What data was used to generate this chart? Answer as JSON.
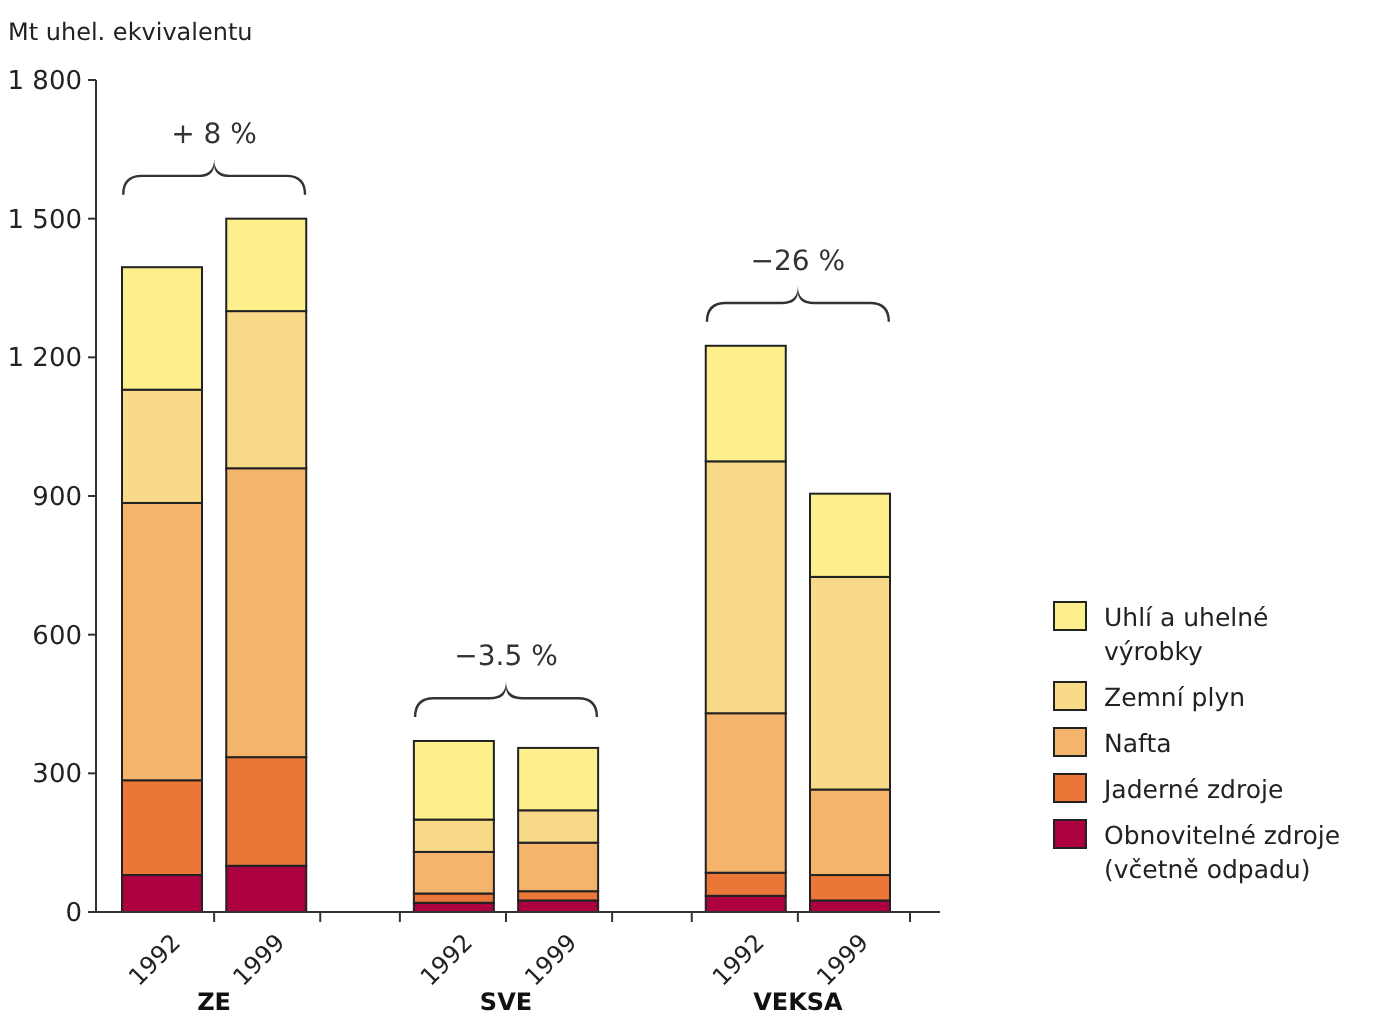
{
  "chart_data": {
    "type": "bar",
    "stacked": true,
    "ylabel": "Mt uhel. ekvivalentu",
    "categories": [
      "1992",
      "1999",
      "1992",
      "1999",
      "1992",
      "1999"
    ],
    "series": [
      {
        "name": "Obnovitelné zdroje (včetně odpadu)",
        "color": "#ad0041",
        "values": [
          80,
          100,
          20,
          25,
          35,
          25
        ]
      },
      {
        "name": "Jaderné zdroje",
        "color": "#ea7637",
        "values": [
          205,
          235,
          20,
          20,
          50,
          55
        ]
      },
      {
        "name": "Nafta",
        "color": "#f4b46b",
        "values": [
          600,
          625,
          90,
          105,
          345,
          185
        ]
      },
      {
        "name": "Zemní plyn",
        "color": "#f8d987",
        "values": [
          245,
          340,
          70,
          70,
          545,
          460
        ]
      },
      {
        "name": "Uhlí a uhelné výrobky",
        "color": "#fcef8c",
        "values": [
          265,
          200,
          170,
          135,
          250,
          180
        ]
      }
    ],
    "ylim": [
      0,
      1800
    ],
    "yticks": [
      0,
      300,
      600,
      900,
      {
        "value": 1200,
        "label": "1 200"
      },
      {
        "value": 1500,
        "label": "1 500"
      },
      {
        "value": 1800,
        "label": "1 800"
      }
    ],
    "legend": "right",
    "annotations": [
      "ZE",
      "SVE",
      "VEKSA",
      "+ 8 %",
      "−3.5 %",
      "−26 %"
    ]
  }
}
